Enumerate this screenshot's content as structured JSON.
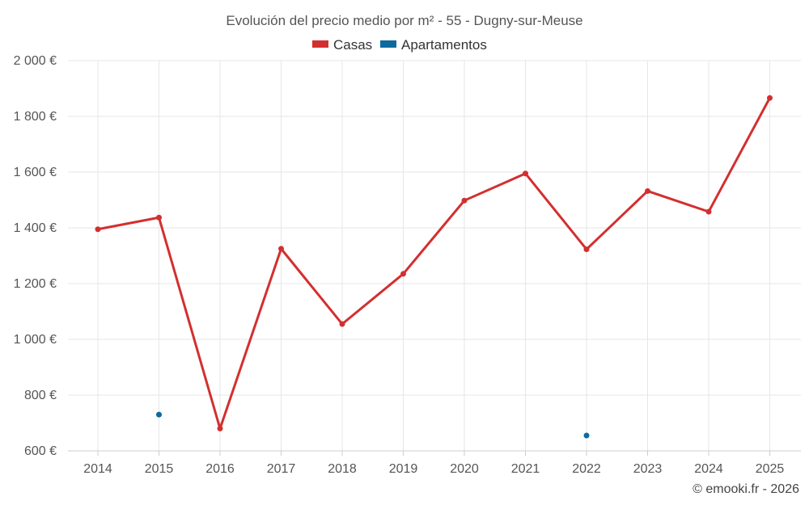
{
  "chart_data": {
    "type": "line",
    "title": "Evolución del precio medio por m² - 55 - Dugny-sur-Meuse",
    "x": [
      "2014",
      "2015",
      "2016",
      "2017",
      "2018",
      "2019",
      "2020",
      "2021",
      "2022",
      "2023",
      "2024",
      "2025"
    ],
    "yticks": [
      "600 €",
      "800 €",
      "1 000 €",
      "1 200 €",
      "1 400 €",
      "1 600 €",
      "1 800 €",
      "2 000 €"
    ],
    "ylim": [
      600,
      2000
    ],
    "grid": true,
    "legend_position": "top-center",
    "series": [
      {
        "name": "Casas",
        "color": "#d32f2f",
        "values": [
          1395,
          1437,
          680,
          1325,
          1055,
          1235,
          1498,
          1595,
          1323,
          1532,
          1458,
          1866
        ]
      },
      {
        "name": "Apartamentos",
        "color": "#0d6a9e",
        "values": [
          null,
          730,
          null,
          null,
          null,
          null,
          null,
          null,
          655,
          null,
          null,
          null
        ]
      }
    ],
    "credit": "© emooki.fr - 2026"
  }
}
